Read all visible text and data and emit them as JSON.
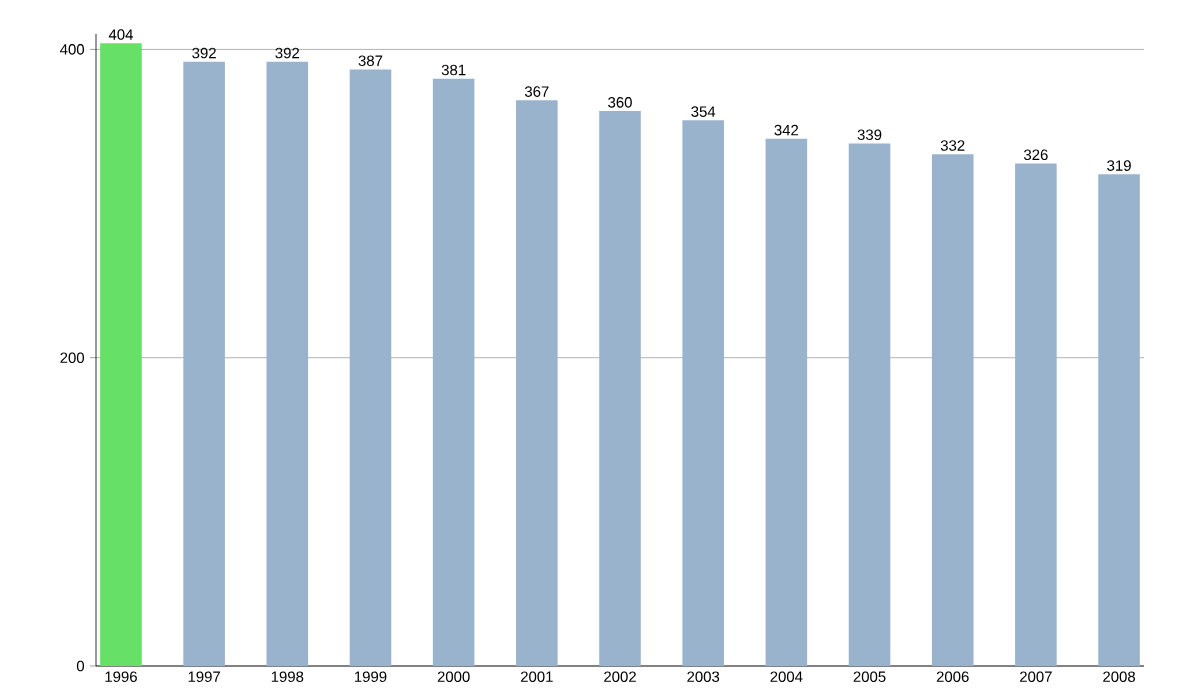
{
  "chart_data": {
    "type": "bar",
    "categories": [
      "1996",
      "1997",
      "1998",
      "1999",
      "2000",
      "2001",
      "2002",
      "2003",
      "2004",
      "2005",
      "2006",
      "2007",
      "2008"
    ],
    "values": [
      404,
      392,
      392,
      387,
      381,
      367,
      360,
      354,
      342,
      339,
      332,
      326,
      319
    ],
    "colors": [
      "#66e066",
      "#9ab3cc",
      "#9ab3cc",
      "#9ab3cc",
      "#9ab3cc",
      "#9ab3cc",
      "#9ab3cc",
      "#9ab3cc",
      "#9ab3cc",
      "#9ab3cc",
      "#9ab3cc",
      "#9ab3cc",
      "#9ab3cc"
    ],
    "ylim": [
      0,
      410
    ],
    "yticks": [
      0,
      200,
      400
    ],
    "grid": "y",
    "data_labels": true
  }
}
